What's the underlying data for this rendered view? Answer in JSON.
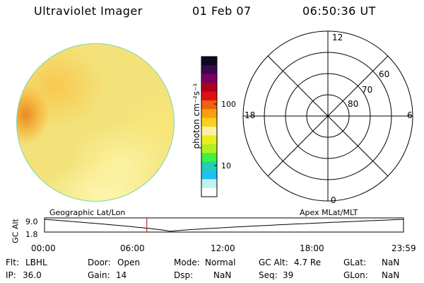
{
  "header": {
    "instrument": "Ultraviolet Imager",
    "date": "01 Feb 07",
    "time": "06:50:36 UT"
  },
  "colorbar": {
    "label": "photon cm⁻²s⁻¹",
    "ticks": [
      "100",
      "10"
    ],
    "colors": [
      "#0a0a20",
      "#3a0a50",
      "#7a0060",
      "#b00020",
      "#e01010",
      "#f06010",
      "#f8a010",
      "#fbd020",
      "#fff0a0",
      "#e8f020",
      "#b0f020",
      "#40f040",
      "#20d0b0",
      "#20c0f0",
      "#c0f0f0",
      "#ffffff"
    ]
  },
  "polar": {
    "mlt_labels": {
      "top": "12",
      "left": "18",
      "right": "6",
      "bottom": "0"
    },
    "lat_labels": [
      "60",
      "70",
      "80"
    ]
  },
  "timeseries": {
    "left_label": "Geographic Lat/Lon",
    "right_label": "Apex MLat/MLT",
    "y_axis_title": "GC Alt",
    "y_ticks": [
      "9.0",
      "1.8"
    ],
    "x_ticks": [
      "00:00",
      "06:00",
      "12:00",
      "18:00",
      "23:59"
    ],
    "current_time_hours": 6.84,
    "orbit_min_hours": 8.4,
    "marker_color": "#cc0000"
  },
  "info": {
    "flt_label": "Flt:",
    "flt_value": "LBHL",
    "ip_label": "IP:",
    "ip_value": "36.0",
    "door_label": "Door:",
    "door_value": "Open",
    "gain_label": "Gain:",
    "gain_value": "14",
    "mode_label": "Mode:",
    "mode_value": "Normal",
    "dsp_label": "Dsp:",
    "dsp_value": "NaN",
    "gcalt_label": "GC Alt:",
    "gcalt_value": "4.7 Re",
    "seq_label": "Seq:",
    "seq_value": "39",
    "glat_label": "GLat:",
    "glat_value": "NaN",
    "glon_label": "GLon:",
    "glon_value": "NaN"
  }
}
